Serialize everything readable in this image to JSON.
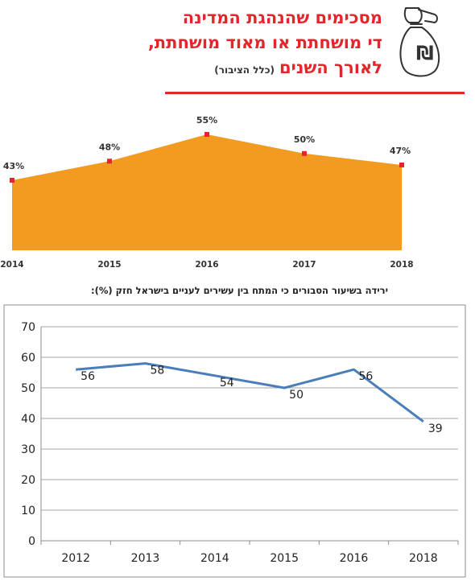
{
  "header": {
    "title_line1": "מסכימים שהנהגת המדינה",
    "title_line2": "די מושחתת או מאוד מושחתת,",
    "title_line3": "לאורך השנים",
    "subtitle": "(כלל הציבור)",
    "icon": "money-bag-hand-icon",
    "accent_color": "#e3262b"
  },
  "chart_data": [
    {
      "type": "area",
      "title": "מסכימים שהנהגת המדינה די מושחתת או מאוד מושחתת, לאורך השנים (כלל הציבור)",
      "x": [
        "2014",
        "2015",
        "2016",
        "2017",
        "2018"
      ],
      "values": [
        43,
        48,
        55,
        50,
        47
      ],
      "data_labels": [
        "43%",
        "48%",
        "55%",
        "50%",
        "47%"
      ],
      "ylim": [
        0,
        60
      ],
      "color": "#f39a21",
      "marker_color": "#e3262b",
      "grid": false
    },
    {
      "type": "line",
      "title": "ירידה בשיעור הסבורים כי המתח בין עשירים לעניים בישראל חזק (%):",
      "x": [
        "2012",
        "2013",
        "2014",
        "2015",
        "2016",
        "2018"
      ],
      "values": [
        56,
        58,
        54,
        50,
        56,
        39
      ],
      "data_labels": [
        "56",
        "58",
        "54",
        "50",
        "56",
        "39"
      ],
      "y_ticks": [
        "0",
        "10",
        "20",
        "30",
        "40",
        "50",
        "60",
        "70"
      ],
      "ylim": [
        0,
        70
      ],
      "color": "#4a7ebb",
      "grid": true
    }
  ]
}
